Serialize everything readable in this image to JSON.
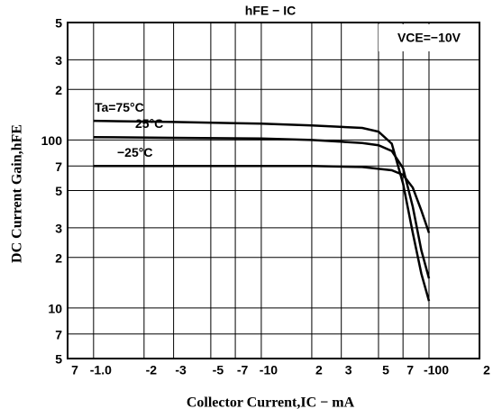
{
  "chart_data": {
    "type": "line",
    "title": "hFE − IC",
    "annotation": "VCE=−10V",
    "x_label": "Collector Current,IC − mA",
    "y_label": "DC Current Gain,hFE",
    "log_x": true,
    "log_y": true,
    "grid": true,
    "xlim": [
      -0.7,
      -200
    ],
    "xticks": [
      {
        "value": -0.7,
        "label": "7"
      },
      {
        "value": -1,
        "label": "-1.0"
      },
      -2,
      -3,
      -5,
      -7,
      {
        "value": -10,
        "label": "-10"
      },
      {
        "value": -20,
        "label": "2"
      },
      {
        "value": -30,
        "label": "3"
      },
      {
        "value": -50,
        "label": "5"
      },
      {
        "value": -70,
        "label": "7"
      },
      {
        "value": -100,
        "label": "-100"
      },
      {
        "value": -200,
        "label": "2"
      }
    ],
    "ylim": [
      5,
      500
    ],
    "yticks": [
      {
        "value": 500,
        "label": "5"
      },
      {
        "value": 300,
        "label": "3"
      },
      {
        "value": 200,
        "label": "2"
      },
      100,
      {
        "value": 70,
        "label": "7"
      },
      {
        "value": 50,
        "label": "5"
      },
      {
        "value": 30,
        "label": "3"
      },
      {
        "value": 20,
        "label": "2"
      },
      10,
      7,
      5
    ],
    "series": [
      {
        "name": "Ta=75°C",
        "color": "#000000",
        "x": [
          -1,
          -3,
          -10,
          -20,
          -40,
          -50,
          -60,
          -70,
          -80,
          -90,
          -100
        ],
        "values": [
          130,
          128,
          125,
          122,
          118,
          112,
          95,
          55,
          28,
          16,
          11
        ]
      },
      {
        "name": "25°C",
        "color": "#000000",
        "x": [
          -1,
          -3,
          -10,
          -20,
          -40,
          -50,
          -60,
          -70,
          -80,
          -90,
          -100
        ],
        "values": [
          104,
          103,
          102,
          100,
          96,
          93,
          86,
          68,
          40,
          22,
          15
        ]
      },
      {
        "name": "−25°C",
        "color": "#000000",
        "x": [
          -1,
          -3,
          -10,
          -20,
          -40,
          -60,
          -70,
          -80,
          -90,
          -100
        ],
        "values": [
          70,
          70,
          70,
          70,
          69,
          66,
          62,
          52,
          38,
          28
        ]
      }
    ]
  }
}
